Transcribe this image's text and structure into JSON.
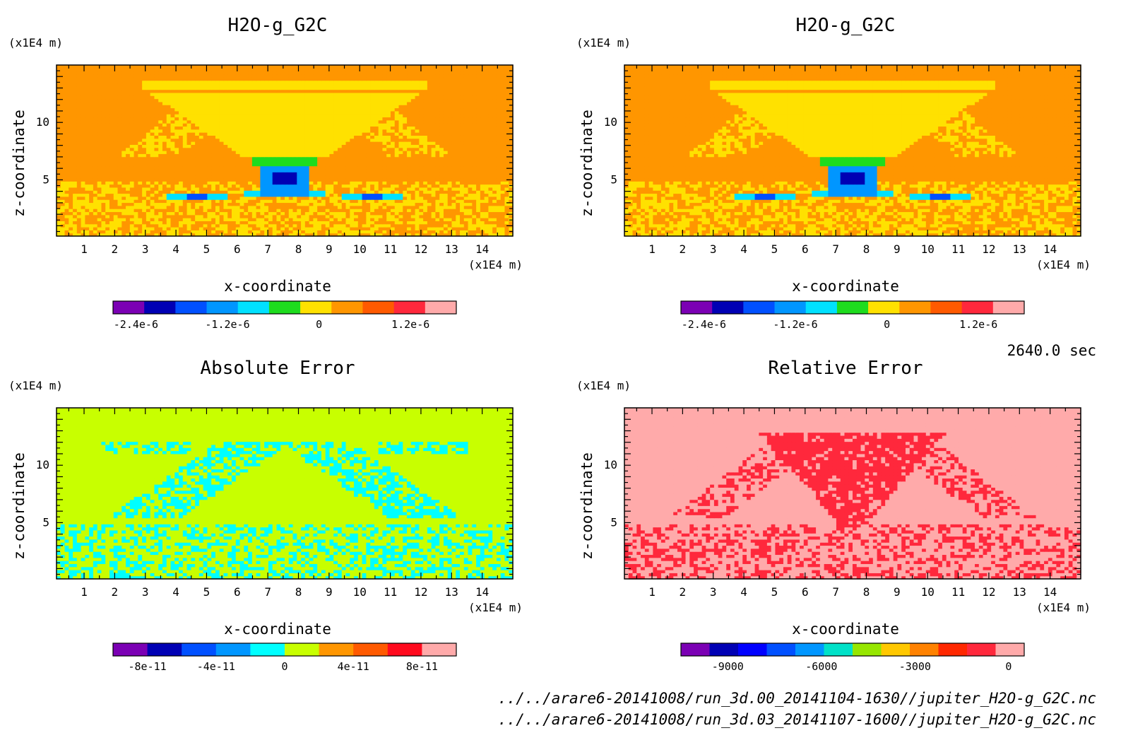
{
  "chart_data": [
    {
      "type": "heatmap",
      "title": "H2O-g_G2C",
      "xlabel": "x-coordinate",
      "ylabel": "z-coordinate",
      "x_unit": "(x1E4 m)",
      "y_unit": "(x1E4 m)",
      "x_ticks": [
        1,
        2,
        3,
        4,
        5,
        6,
        7,
        8,
        9,
        10,
        11,
        12,
        13,
        14
      ],
      "y_ticks": [
        5,
        10
      ],
      "xlim": [
        0.1,
        15.0
      ],
      "ylim": [
        0.1,
        15.0
      ],
      "colorbar": {
        "colors": [
          "#7b00b4",
          "#0000b4",
          "#0050ff",
          "#0096ff",
          "#00e1ff",
          "#1edc1e",
          "#ffe100",
          "#ff9600",
          "#ff5a00",
          "#ff283c",
          "#ffaaaa"
        ],
        "tick_labels": [
          "-2.4e-6",
          "-1.2e-6",
          "0",
          "1.2e-6"
        ],
        "tick_values": [
          -2.4e-06,
          -1.2e-06,
          0,
          1.2e-06
        ],
        "range": [
          -2.7e-06,
          1.8e-06
        ]
      },
      "field": "h2o"
    },
    {
      "type": "heatmap",
      "title": "H2O-g_G2C",
      "xlabel": "x-coordinate",
      "ylabel": "z-coordinate",
      "x_unit": "(x1E4 m)",
      "y_unit": "(x1E4 m)",
      "x_ticks": [
        1,
        2,
        3,
        4,
        5,
        6,
        7,
        8,
        9,
        10,
        11,
        12,
        13,
        14
      ],
      "y_ticks": [
        5,
        10
      ],
      "xlim": [
        0.1,
        15.0
      ],
      "ylim": [
        0.1,
        15.0
      ],
      "colorbar": {
        "colors": [
          "#7b00b4",
          "#0000b4",
          "#0050ff",
          "#0096ff",
          "#00e1ff",
          "#1edc1e",
          "#ffe100",
          "#ff9600",
          "#ff5a00",
          "#ff283c",
          "#ffaaaa"
        ],
        "tick_labels": [
          "-2.4e-6",
          "-1.2e-6",
          "0",
          "1.2e-6"
        ],
        "tick_values": [
          -2.4e-06,
          -1.2e-06,
          0,
          1.2e-06
        ],
        "range": [
          -2.7e-06,
          1.8e-06
        ]
      },
      "field": "h2o"
    },
    {
      "type": "heatmap",
      "title": "Absolute Error",
      "xlabel": "x-coordinate",
      "ylabel": "z-coordinate",
      "x_unit": "(x1E4 m)",
      "y_unit": "(x1E4 m)",
      "x_ticks": [
        1,
        2,
        3,
        4,
        5,
        6,
        7,
        8,
        9,
        10,
        11,
        12,
        13,
        14
      ],
      "y_ticks": [
        5,
        10
      ],
      "xlim": [
        0.1,
        15.0
      ],
      "ylim": [
        0.1,
        15.0
      ],
      "colorbar": {
        "colors": [
          "#7b00b4",
          "#0000b4",
          "#0050ff",
          "#0096ff",
          "#00ffff",
          "#c8ff00",
          "#ff9600",
          "#ff5a00",
          "#ff0a1e",
          "#ffaaaa"
        ],
        "tick_labels": [
          "-8e-11",
          "-4e-11",
          "0",
          "4e-11",
          "8e-11"
        ],
        "tick_values": [
          -8e-11,
          -4e-11,
          0,
          4e-11,
          8e-11
        ],
        "range": [
          -1e-10,
          1e-10
        ]
      },
      "field": "abs"
    },
    {
      "type": "heatmap",
      "title": "Relative Error",
      "xlabel": "x-coordinate",
      "ylabel": "z-coordinate",
      "x_unit": "(x1E4 m)",
      "y_unit": "(x1E4 m)",
      "x_ticks": [
        1,
        2,
        3,
        4,
        5,
        6,
        7,
        8,
        9,
        10,
        11,
        12,
        13,
        14
      ],
      "y_ticks": [
        5,
        10
      ],
      "xlim": [
        0.1,
        15.0
      ],
      "ylim": [
        0.1,
        15.0
      ],
      "colorbar": {
        "colors": [
          "#7b00b4",
          "#0000b4",
          "#0000ff",
          "#0050ff",
          "#0096ff",
          "#00e1c8",
          "#96e600",
          "#ffc800",
          "#ff8200",
          "#ff2800",
          "#ff283c",
          "#ffaaaa"
        ],
        "tick_labels": [
          "-9000",
          "-6000",
          "-3000",
          "0"
        ],
        "tick_values": [
          -9000,
          -6000,
          -3000,
          0
        ],
        "range": [
          -10500,
          500
        ]
      },
      "field": "rel"
    }
  ],
  "time_label": "2640.0 sec",
  "footer": {
    "file1": "../../arare6-20141008/run_3d.00_20141104-1630//jupiter_H2O-g_G2C.nc",
    "file2": "../../arare6-20141008/run_3d.03_20141107-1600//jupiter_H2O-g_G2C.nc"
  }
}
